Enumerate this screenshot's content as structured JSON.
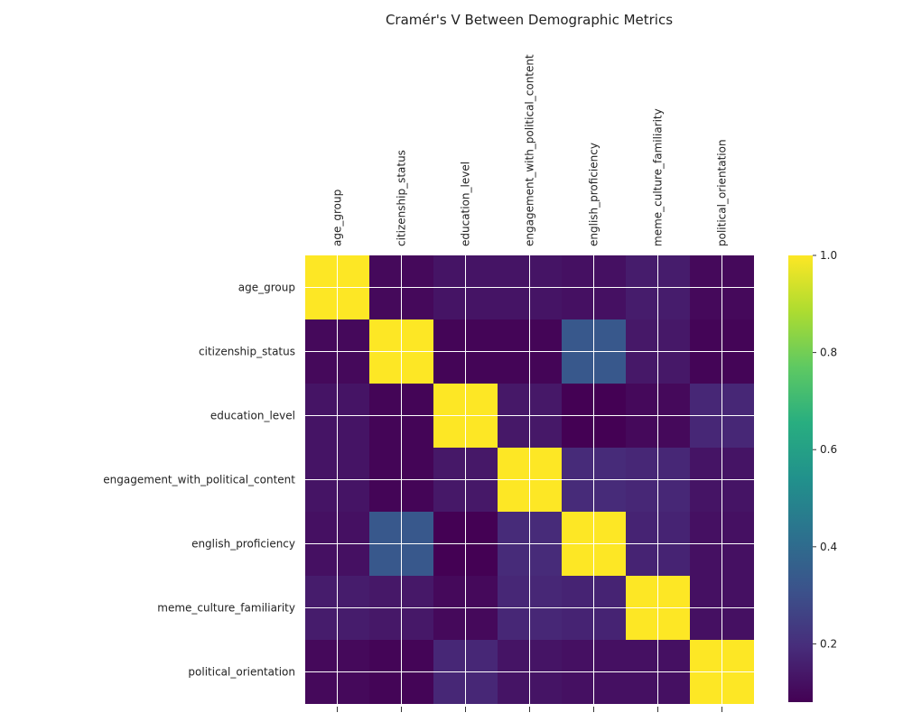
{
  "chart_data": {
    "type": "heatmap",
    "title": "Cramér's V Between Demographic Metrics",
    "xlabel": "",
    "ylabel": "",
    "colormap": "viridis",
    "grid": true,
    "legend": "colorbar-right",
    "variables": [
      "age_group",
      "citizenship_status",
      "education_level",
      "engagement_with_political_content",
      "english_proficiency",
      "meme_culture_familiarity",
      "political_orientation"
    ],
    "matrix": [
      [
        1.0,
        0.1,
        0.13,
        0.13,
        0.12,
        0.15,
        0.1
      ],
      [
        0.1,
        1.0,
        0.09,
        0.09,
        0.33,
        0.14,
        0.09
      ],
      [
        0.13,
        0.09,
        1.0,
        0.14,
        0.08,
        0.1,
        0.18
      ],
      [
        0.13,
        0.09,
        0.14,
        1.0,
        0.19,
        0.18,
        0.13
      ],
      [
        0.12,
        0.33,
        0.08,
        0.19,
        1.0,
        0.17,
        0.12
      ],
      [
        0.15,
        0.14,
        0.1,
        0.18,
        0.17,
        1.0,
        0.12
      ],
      [
        0.1,
        0.09,
        0.18,
        0.13,
        0.12,
        0.12,
        1.0
      ]
    ],
    "colorbar": {
      "range": [
        0.08,
        1.0
      ],
      "ticks": [
        "0.2",
        "0.4",
        "0.6",
        "0.8",
        "1.0"
      ],
      "tick_values": [
        0.2,
        0.4,
        0.6,
        0.8,
        1.0
      ]
    }
  }
}
